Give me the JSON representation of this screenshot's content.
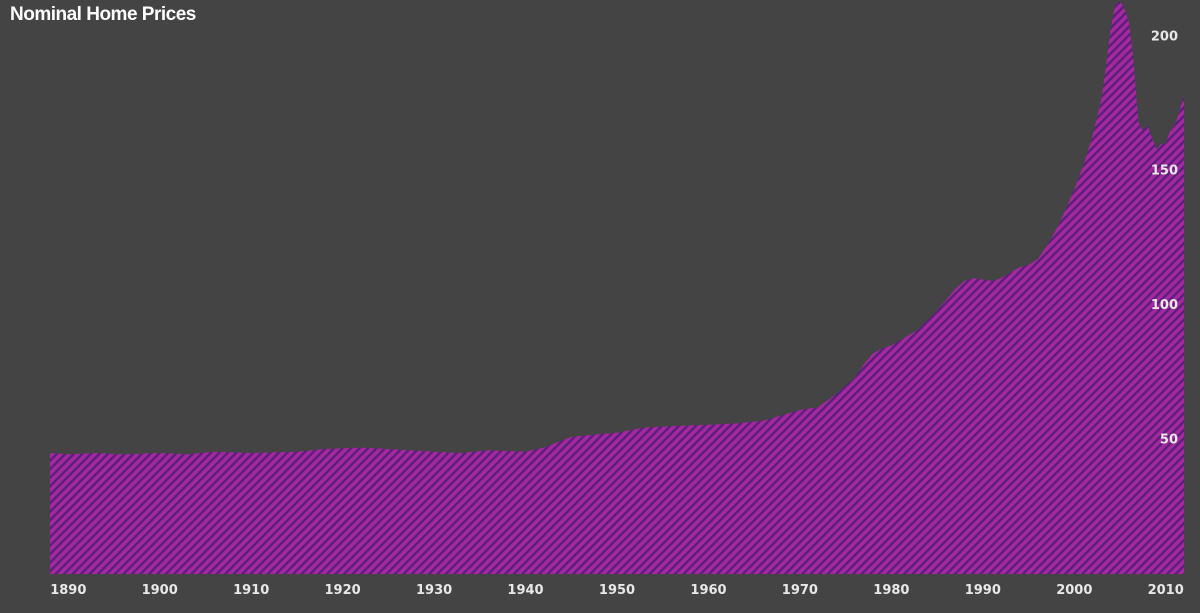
{
  "chart_data": {
    "type": "area",
    "title": "Nominal Home Prices",
    "xlabel": "",
    "ylabel": "",
    "xlim": [
      1888,
      2012
    ],
    "ylim": [
      0,
      212
    ],
    "x_ticks": [
      1890,
      1900,
      1910,
      1920,
      1930,
      1940,
      1950,
      1960,
      1970,
      1980,
      1990,
      2000,
      2010
    ],
    "y_ticks": [
      50,
      100,
      150,
      200
    ],
    "y_axis_side": "right",
    "grid": false,
    "legend": "none",
    "colors": {
      "background": "#444444",
      "fill": "#a4299f",
      "hatch": "#5a1f7a",
      "text": "#e8e8e8"
    },
    "series": [
      {
        "x": [
          1888,
          1890,
          1893,
          1896,
          1900,
          1903,
          1906,
          1910,
          1915,
          1918,
          1922,
          1925,
          1930,
          1933,
          1936,
          1940,
          1942,
          1945,
          1948,
          1950,
          1953,
          1956,
          1960,
          1963,
          1966,
          1968,
          1970,
          1972,
          1974,
          1976,
          1977,
          1978,
          1979,
          1980,
          1981,
          1983,
          1985,
          1987,
          1988,
          1989,
          1990,
          1991,
          1992,
          1993,
          1994,
          1995,
          1996,
          1997,
          1998,
          1999,
          2000,
          2001,
          2002,
          2003,
          2003.5,
          2004,
          2004.5,
          2005,
          2005.5,
          2006,
          2006.5,
          2007,
          2007.5,
          2008,
          2008.5,
          2009,
          2009.5,
          2010,
          2010.5,
          2011,
          2011.5,
          2012
        ],
        "values": [
          45,
          44.5,
          45,
          44.5,
          45,
          44.5,
          45.5,
          45,
          45.5,
          46.5,
          47,
          46.5,
          45.5,
          45,
          46,
          45.5,
          47,
          51,
          52,
          52.5,
          54.5,
          55,
          55.5,
          56,
          57,
          59,
          61,
          62,
          67,
          73,
          78,
          82,
          84,
          85,
          87,
          91,
          98,
          106,
          109,
          110,
          109.5,
          109,
          110,
          112,
          114,
          115,
          117,
          122,
          128,
          135,
          143,
          152,
          163,
          177,
          190,
          203,
          212,
          213,
          210,
          205,
          190,
          168,
          165,
          167,
          162,
          158,
          160,
          160,
          165,
          167,
          172,
          178
        ]
      }
    ]
  }
}
